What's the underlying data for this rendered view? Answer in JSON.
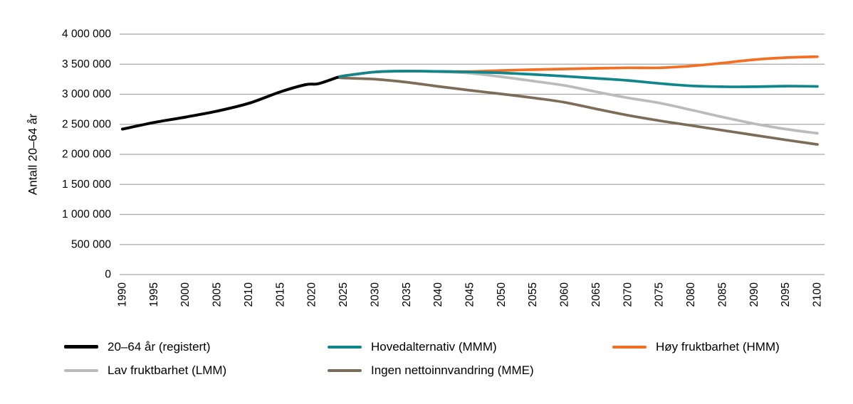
{
  "chart_data": {
    "type": "line",
    "title": "",
    "xlabel": "",
    "ylabel": "Antall 20–64 år",
    "xlim": [
      1990,
      2100
    ],
    "ylim": [
      0,
      4000000
    ],
    "grid": "horizontal gridlines only, light gray",
    "legend_position": "bottom, 3 columns, 2 rows",
    "x_ticks": [
      1990,
      1995,
      2000,
      2005,
      2010,
      2015,
      2020,
      2025,
      2030,
      2035,
      2040,
      2045,
      2050,
      2055,
      2060,
      2065,
      2070,
      2075,
      2080,
      2085,
      2090,
      2095,
      2100
    ],
    "y_ticks": [
      0,
      500000,
      1000000,
      1500000,
      2000000,
      2500000,
      3000000,
      3500000,
      4000000
    ],
    "y_tick_labels": [
      "0",
      "500 000",
      "1 000 000",
      "1 500 000",
      "2 000 000",
      "2 500 000",
      "3 000 000",
      "3 500 000",
      "4 000 000"
    ],
    "gridline_color": "#A8A8A8",
    "series": [
      {
        "name": "20–64 år (registert)",
        "color": "#000000",
        "x": [
          1990,
          1995,
          2000,
          2005,
          2010,
          2015,
          2019,
          2021,
          2024
        ],
        "y": [
          2420000,
          2530000,
          2620000,
          2720000,
          2850000,
          3040000,
          3160000,
          3175000,
          3280000
        ]
      },
      {
        "name": "Hovedalternativ (MMM)",
        "color": "#0F858C",
        "x": [
          2024,
          2025,
          2030,
          2035,
          2040,
          2045,
          2050,
          2055,
          2060,
          2065,
          2070,
          2075,
          2080,
          2085,
          2090,
          2095,
          2100
        ],
        "y": [
          3280000,
          3305000,
          3370000,
          3385000,
          3380000,
          3370000,
          3355000,
          3330000,
          3300000,
          3265000,
          3230000,
          3180000,
          3140000,
          3125000,
          3125000,
          3135000,
          3130000
        ]
      },
      {
        "name": "Høy fruktbarhet (HMM)",
        "color": "#F26F23",
        "x": [
          2024,
          2025,
          2030,
          2035,
          2040,
          2045,
          2050,
          2055,
          2060,
          2065,
          2070,
          2075,
          2080,
          2085,
          2090,
          2095,
          2100
        ],
        "y": [
          3280000,
          3305000,
          3370000,
          3385000,
          3380000,
          3378000,
          3395000,
          3410000,
          3420000,
          3432000,
          3440000,
          3440000,
          3470000,
          3520000,
          3575000,
          3610000,
          3625000
        ]
      },
      {
        "name": "Lav fruktbarhet (LMM)",
        "color": "#BBBBBB",
        "x": [
          2024,
          2025,
          2030,
          2035,
          2040,
          2045,
          2050,
          2055,
          2060,
          2065,
          2070,
          2075,
          2080,
          2085,
          2090,
          2095,
          2100
        ],
        "y": [
          3280000,
          3305000,
          3370000,
          3385000,
          3375000,
          3350000,
          3290000,
          3220000,
          3145000,
          3040000,
          2940000,
          2855000,
          2740000,
          2620000,
          2510000,
          2420000,
          2350000
        ]
      },
      {
        "name": "Ingen nettoinnvandring (MME)",
        "color": "#7D6C57",
        "x": [
          2024,
          2025,
          2030,
          2035,
          2040,
          2045,
          2050,
          2055,
          2060,
          2065,
          2070,
          2075,
          2080,
          2085,
          2090,
          2095,
          2100
        ],
        "y": [
          3280000,
          3270000,
          3250000,
          3200000,
          3130000,
          3065000,
          3005000,
          2940000,
          2865000,
          2755000,
          2650000,
          2560000,
          2480000,
          2400000,
          2320000,
          2240000,
          2165000
        ]
      }
    ],
    "draw_order": [
      3,
      2,
      4,
      1,
      0
    ]
  }
}
